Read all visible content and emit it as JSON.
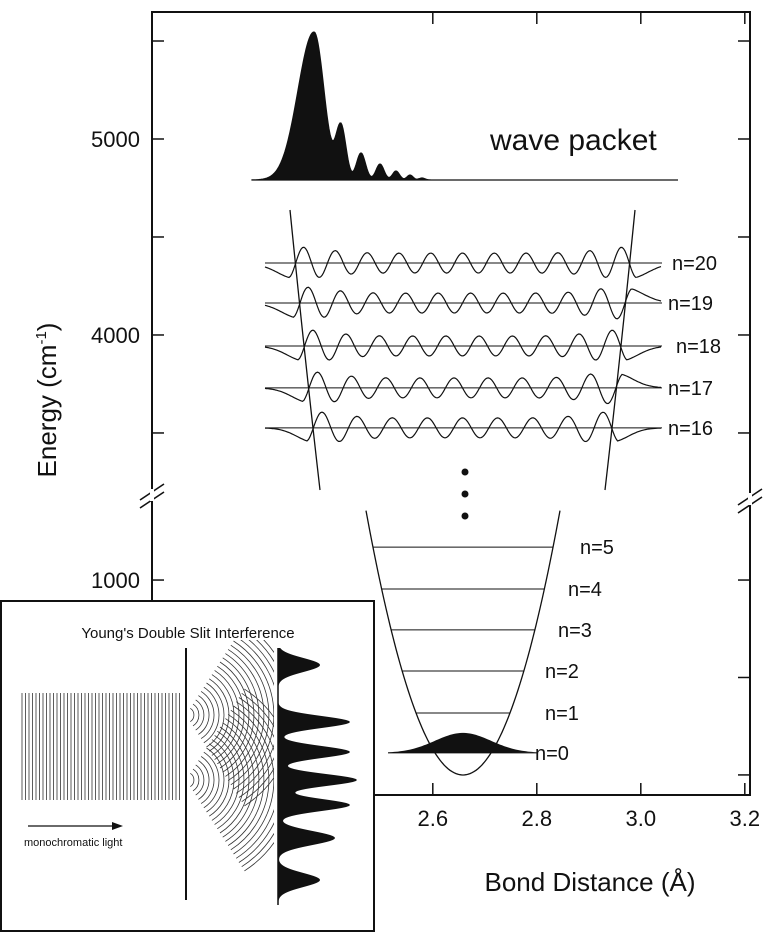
{
  "y_axis": {
    "label": "Energy (cm",
    "label_superscript": "-1",
    "label_close": ")",
    "upper_ylim": [
      3209,
      5648
    ],
    "lower_ylim": [
      -103,
      1462
    ],
    "upper_yticks": [
      4000,
      5000
    ],
    "upper_minor_yticks": [
      3500,
      4500,
      5500
    ],
    "lower_yticks": [
      1000
    ],
    "lower_minor_yticks": [
      0,
      500
    ]
  },
  "x_axis": {
    "label": "Bond Distance (Å)",
    "xlim": [
      2.06,
      3.21
    ],
    "xticks": [
      2.6,
      2.8,
      {
        "value": 3,
        "label": "3.0"
      },
      3.2
    ]
  },
  "wave_packet_label": "wave packet",
  "upper_levels": [
    {
      "label": "n=20",
      "energy": 4367
    },
    {
      "label": "n=19",
      "energy": 4163
    },
    {
      "label": "n=18",
      "energy": 3944
    },
    {
      "label": "n=17",
      "energy": 3730
    },
    {
      "label": "n=16",
      "energy": 3526
    }
  ],
  "lower_levels": [
    {
      "label": "n=5",
      "energy": 1169
    },
    {
      "label": "n=4",
      "energy": 954
    },
    {
      "label": "n=3",
      "energy": 744
    },
    {
      "label": "n=2",
      "energy": 533
    },
    {
      "label": "n=1",
      "energy": 318
    },
    {
      "label": "n=0",
      "energy": 113
    }
  ],
  "inset": {
    "title": "Young's Double Slit Interference",
    "caption": "monochromatic light"
  }
}
